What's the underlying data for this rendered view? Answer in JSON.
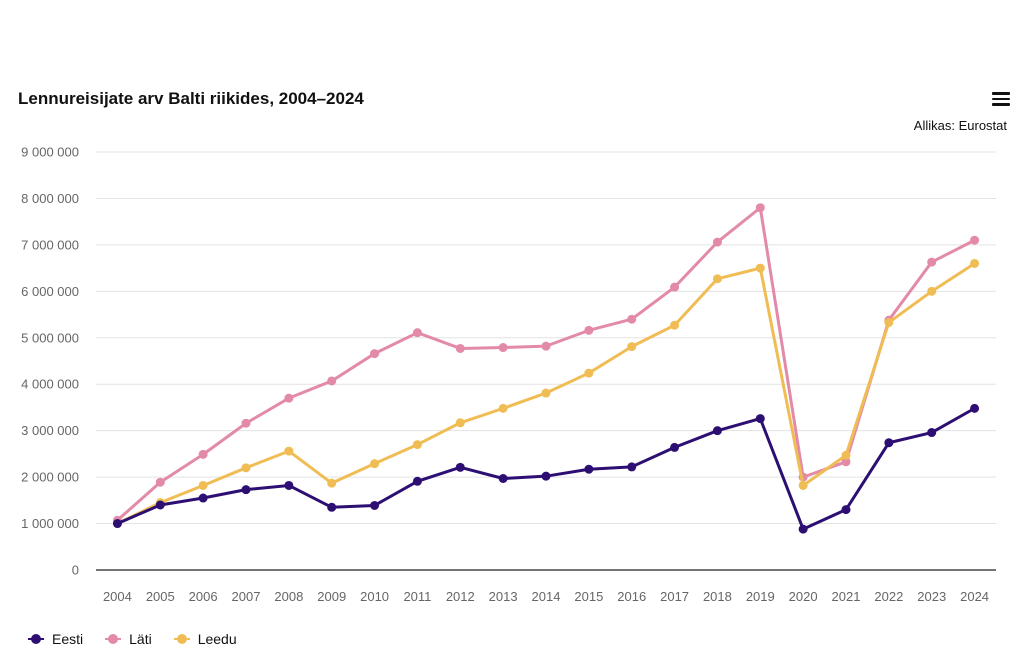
{
  "header": {
    "title": "Lennureisijate arv Balti riikides, 2004–2024",
    "source": "Allikas: Eurostat",
    "menu_icon": "hamburger-menu-icon"
  },
  "chart_data": {
    "type": "line",
    "title": "Lennureisijate arv Balti riikides, 2004–2024",
    "x": [
      2004,
      2005,
      2006,
      2007,
      2008,
      2009,
      2010,
      2011,
      2012,
      2013,
      2014,
      2015,
      2016,
      2017,
      2018,
      2019,
      2020,
      2021,
      2022,
      2023,
      2024
    ],
    "yticks": [
      "0",
      "1 000 000",
      "2 000 000",
      "3 000 000",
      "4 000 000",
      "5 000 000",
      "6 000 000",
      "7 000 000",
      "8 000 000",
      "9 000 000"
    ],
    "ylim": [
      0,
      9000000
    ],
    "grid": true,
    "legend_position": "bottom-left",
    "series": [
      {
        "name": "Eesti",
        "color": "#2d0f73",
        "values": [
          1000000,
          1400000,
          1550000,
          1730000,
          1820000,
          1350000,
          1390000,
          1910000,
          2210000,
          1970000,
          2020000,
          2170000,
          2220000,
          2640000,
          3000000,
          3260000,
          880000,
          1300000,
          2740000,
          2960000,
          3480000
        ]
      },
      {
        "name": "Läti",
        "color": "#e28aa8",
        "values": [
          1070000,
          1890000,
          2490000,
          3160000,
          3700000,
          4070000,
          4660000,
          5110000,
          4770000,
          4790000,
          4820000,
          5160000,
          5400000,
          6090000,
          7060000,
          7800000,
          2000000,
          2330000,
          5380000,
          6630000,
          7100000
        ]
      },
      {
        "name": "Leedu",
        "color": "#f0bd55",
        "values": [
          1000000,
          1450000,
          1820000,
          2200000,
          2560000,
          1870000,
          2290000,
          2700000,
          3170000,
          3480000,
          3810000,
          4240000,
          4810000,
          5270000,
          6270000,
          6500000,
          1820000,
          2470000,
          5330000,
          6000000,
          6600000
        ]
      }
    ]
  }
}
